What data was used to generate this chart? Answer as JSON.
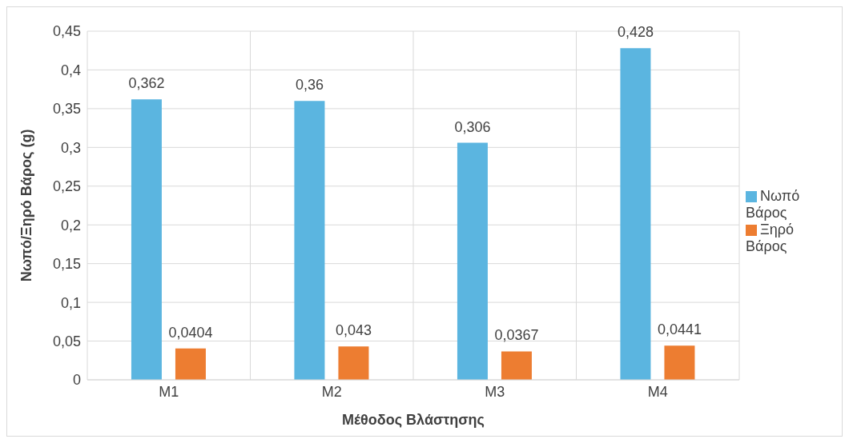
{
  "chart_data": {
    "type": "bar",
    "xlabel": "Μέθοδος Βλάστησης",
    "ylabel": "Νωπό/Ξηρό Βάρος (g)",
    "categories": [
      "M1",
      "M2",
      "M3",
      "M4"
    ],
    "series": [
      {
        "name": "Νωπό Βάρος",
        "color": "#5bb5e0",
        "values": [
          0.362,
          0.36,
          0.306,
          0.428
        ],
        "value_labels": [
          "0,362",
          "0,36",
          "0,306",
          "0,428"
        ]
      },
      {
        "name": "Ξηρό Βάρος",
        "color": "#ed7d31",
        "values": [
          0.0404,
          0.043,
          0.0367,
          0.0441
        ],
        "value_labels": [
          "0,0404",
          "0,043",
          "0,0367",
          "0,0441"
        ]
      }
    ],
    "ylim": [
      0,
      0.45
    ],
    "yticks": [
      0,
      {
        "value": 0.05,
        "label": "0,05"
      },
      {
        "value": 0.1,
        "label": "0,1"
      },
      {
        "value": 0.15,
        "label": "0,15"
      },
      {
        "value": 0.2,
        "label": "0,2"
      },
      {
        "value": 0.25,
        "label": "0,25"
      },
      {
        "value": 0.3,
        "label": "0,3"
      },
      {
        "value": 0.35,
        "label": "0,35"
      },
      {
        "value": 0.4,
        "label": "0,4"
      },
      {
        "value": 0.45,
        "label": "0,45"
      }
    ],
    "grid": true,
    "legend": "right"
  }
}
